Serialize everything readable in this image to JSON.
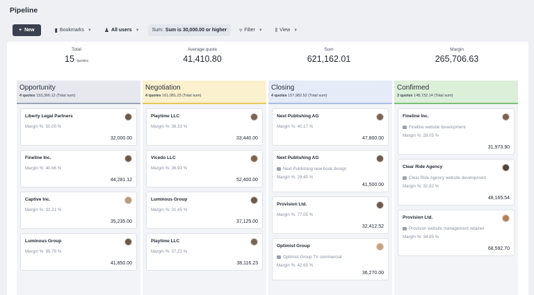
{
  "page": {
    "title": "Pipeline"
  },
  "toolbar": {
    "new_label": "New",
    "bookmarks_label": "Bookmarks",
    "users_label": "All users",
    "sum_prefix": "Sum:",
    "sum_value": "Sum is 30,000.00 or higher",
    "filter_label": "Filter",
    "view_label": "View"
  },
  "stats": [
    {
      "label": "Total",
      "value": "15",
      "unit": "quotes"
    },
    {
      "label": "Average quote",
      "value": "41,410.80",
      "unit": ""
    },
    {
      "label": "Sum",
      "value": "621,162.01",
      "unit": ""
    },
    {
      "label": "Margin",
      "value": "265,706.63",
      "unit": ""
    }
  ],
  "colors": {
    "opportunity": "#e6e8ee",
    "opportunity_border": "#9aa3b5",
    "negotiation": "#fbf1cf",
    "negotiation_border": "#e7c85c",
    "closing": "#e5ebf7",
    "closing_border": "#a9bde3",
    "confirmed": "#dcefd9",
    "confirmed_border": "#7cc07a"
  },
  "columns": [
    {
      "name": "Opportunity",
      "count": "4 quotes",
      "total": "153,366.12",
      "total_label": "(Total sum)",
      "cards": [
        {
          "name": "Liberty Legal Partners",
          "desc": "",
          "margin": "Margin %: 50.00 %",
          "amount": "32,000.00"
        },
        {
          "name": "Fineline Inc.",
          "desc": "",
          "margin": "Margin %: 40.66 %",
          "amount": "44,281.12"
        },
        {
          "name": "Captive Inc.",
          "desc": "",
          "margin": "Margin %: 32.31 %",
          "amount": "35,235.00"
        },
        {
          "name": "Luminous Group",
          "desc": "",
          "margin": "Margin %: 99.78 %",
          "amount": "41,850.00"
        }
      ]
    },
    {
      "name": "Negotiation",
      "count": "4 quotes",
      "total": "161,081.23",
      "total_label": "(Total sum)",
      "cards": [
        {
          "name": "Playtime LLC",
          "desc": "",
          "margin": "Margin %: 36.33 %",
          "amount": "33,440.00"
        },
        {
          "name": "Vicedo LLC",
          "desc": "",
          "margin": "Margin %: 36.93 %",
          "amount": "52,400.00"
        },
        {
          "name": "Luminous Group",
          "desc": "",
          "margin": "Margin %: 31.45 %",
          "amount": "37,125.00"
        },
        {
          "name": "Playtime LLC",
          "desc": "",
          "margin": "Margin %: 37.22 %",
          "amount": "38,116.23"
        }
      ]
    },
    {
      "name": "Closing",
      "count": "4 quotes",
      "total": "157,982.52",
      "total_label": "(Total sum)",
      "cards": [
        {
          "name": "Next Publishing AG",
          "desc": "",
          "margin": "Margin %: 40.17 %",
          "amount": "47,800.00"
        },
        {
          "name": "Next Publishing AG",
          "desc": "Next Publishing new book design",
          "margin": "Margin %: 29.40 %",
          "amount": "41,500.00"
        },
        {
          "name": "Provision Ltd.",
          "desc": "",
          "margin": "Margin %: 77.05 %",
          "amount": "32,412.52"
        },
        {
          "name": "Optimist Group",
          "desc": "Optimist Group TV commercial",
          "margin": "Margin %: 42.65 %",
          "amount": "36,270.00"
        }
      ]
    },
    {
      "name": "Confirmed",
      "count": "3 quotes",
      "total": "148,732.14",
      "total_label": "(Total sum)",
      "cards": [
        {
          "name": "Fineline Inc.",
          "desc": "Fineline website development",
          "margin": "Margin %: 28.05 %",
          "amount": "31,973.90"
        },
        {
          "name": "Clear Ride Agency",
          "desc": "Clear Ride Agency website development",
          "margin": "Margin %: 32.82 %",
          "amount": "48,165.54"
        },
        {
          "name": "Provision Ltd.",
          "desc": "Provision website management retainer",
          "margin": "Margin %: 34.85 %",
          "amount": "68,592.70"
        }
      ]
    }
  ]
}
